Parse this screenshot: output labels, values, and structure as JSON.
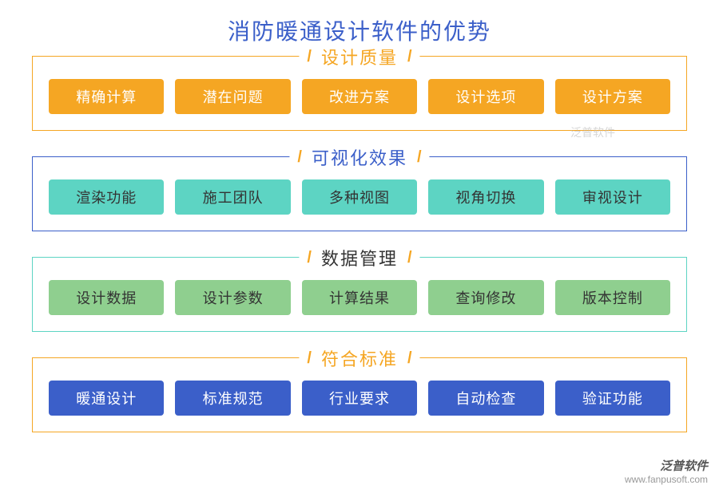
{
  "title": {
    "text": "消防暖通设计软件的优势",
    "color": "#3b5fc9"
  },
  "sections": [
    {
      "label": "设计质量",
      "border_color": "#f5a623",
      "title_color": "#f5a623",
      "slash_color": "#f5a623",
      "item_bg": "#f5a623",
      "item_fg": "#ffffff",
      "items": [
        "精确计算",
        "潜在问题",
        "改进方案",
        "设计选项",
        "设计方案"
      ]
    },
    {
      "label": "可视化效果",
      "border_color": "#3b5fc9",
      "title_color": "#3b5fc9",
      "slash_color": "#f5a623",
      "item_bg": "#5dd4c3",
      "item_fg": "#333333",
      "items": [
        "渲染功能",
        "施工团队",
        "多种视图",
        "视角切换",
        "审视设计"
      ]
    },
    {
      "label": "数据管理",
      "border_color": "#5dd4c3",
      "title_color": "#333333",
      "slash_color": "#f5a623",
      "item_bg": "#8fcf8f",
      "item_fg": "#333333",
      "items": [
        "设计数据",
        "设计参数",
        "计算结果",
        "查询修改",
        "版本控制"
      ]
    },
    {
      "label": "符合标准",
      "border_color": "#f5a623",
      "title_color": "#f5a623",
      "slash_color": "#f5a623",
      "item_bg": "#3b5fc9",
      "item_fg": "#ffffff",
      "items": [
        "暖通设计",
        "标准规范",
        "行业要求",
        "自动检查",
        "验证功能"
      ]
    }
  ],
  "watermark": {
    "brand": "泛普软件",
    "url": "www.fanpusoft.com"
  },
  "watermark_inline": "泛普软件"
}
